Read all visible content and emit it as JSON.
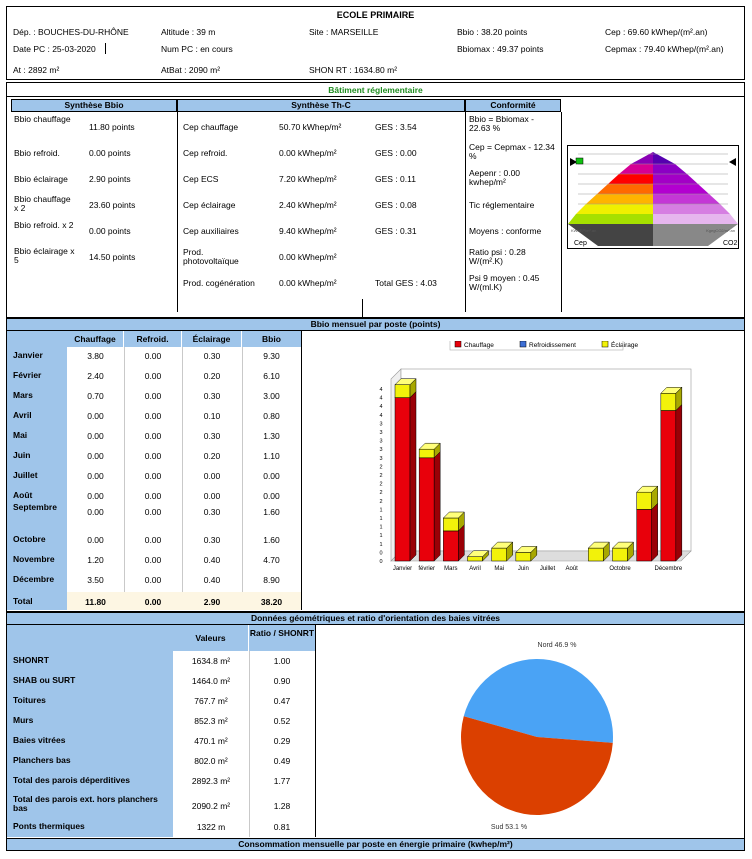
{
  "header": {
    "title": "ECOLE PRIMAIRE",
    "dep": "Dép. :  BOUCHES-DU-RHÔNE",
    "date_pc": "Date PC : 25-03-2020",
    "at": "At : 2892 m²",
    "altitude": "Altitude : 39 m",
    "num_pc": "Num PC  : en cours",
    "atbat": "AtBat : 2090 m²",
    "site": "Site : MARSEILLE",
    "shon": "SHON RT : 1634.80 m²",
    "bbio": "Bbio : 38.20 points",
    "bbiomax": "Bbiomax : 49.37 points",
    "cep": "Cep : 69.60 kWhep/(m².an)",
    "cepmax": "Cepmax : 79.40 kWhep/(m².an)"
  },
  "batiment": {
    "title": "Bâtiment réglementaire",
    "synth_bbio_title": "Synthèse Bbio",
    "synth_thc_title": "Synthèse Th-C",
    "conformite_title": "Conformité",
    "bbio_rows": [
      {
        "label": "Bbio chauffage",
        "value": "11.80 points"
      },
      {
        "label": "Bbio refroid.",
        "value": "0.00 points"
      },
      {
        "label": "Bbio éclairage",
        "value": "2.90 points"
      },
      {
        "label": "Bbio chauffage x 2",
        "value": "23.60 points"
      },
      {
        "label": "Bbio refroid. x 2",
        "value": "0.00 points"
      },
      {
        "label": "Bbio éclairage x 5",
        "value": "14.50 points"
      }
    ],
    "thc_rows": [
      {
        "label": "Cep chauffage",
        "value": "50.70 kWhep/m²",
        "ges": "GES : 3.54"
      },
      {
        "label": "Cep refroid.",
        "value": "0.00 kWhep/m²",
        "ges": "GES : 0.00"
      },
      {
        "label": "Cep ECS",
        "value": "7.20 kWhep/m²",
        "ges": "GES : 0.11"
      },
      {
        "label": "Cep éclairage",
        "value": "2.40 kWhep/m²",
        "ges": "GES : 0.08"
      },
      {
        "label": "Cep auxiliaires",
        "value": "9.40 kWhep/m²",
        "ges": "GES : 0.31"
      },
      {
        "label": "Prod. photovoltaïque",
        "value": "0.00 kWhep/m²",
        "ges": ""
      },
      {
        "label": "Prod. cogénération",
        "value": "0.00 kWhep/m²",
        "ges": "Total GES : 4.03"
      }
    ],
    "conformite_rows": [
      "Bbio = Bbiomax - 22.63 %",
      "Cep = Cepmax - 12.34 %",
      "Aepenr : 0.00 kwhep/m²",
      "Tic réglementaire",
      "Moyens : conforme",
      "Ratio psi : 0.28 W/(m².K)",
      "Psi 9 moyen : 0.45 W/(ml.K)"
    ],
    "pyramid": {
      "left_label": "Cep",
      "right_label": "CO2",
      "left_small": "KWhEP/m².an",
      "right_small": "KgegCO2/m².an"
    }
  },
  "bbio_mensuel": {
    "title": "Bbio mensuel par poste (points)",
    "headers": [
      "Chauffage",
      "Refroid.",
      "Éclairage",
      "Bbio"
    ],
    "rows": [
      {
        "month": "Janvier",
        "vals": [
          "3.80",
          "0.00",
          "0.30",
          "9.30"
        ]
      },
      {
        "month": "Février",
        "vals": [
          "2.40",
          "0.00",
          "0.20",
          "6.10"
        ]
      },
      {
        "month": "Mars",
        "vals": [
          "0.70",
          "0.00",
          "0.30",
          "3.00"
        ]
      },
      {
        "month": "Avril",
        "vals": [
          "0.00",
          "0.00",
          "0.10",
          "0.80"
        ]
      },
      {
        "month": "Mai",
        "vals": [
          "0.00",
          "0.00",
          "0.30",
          "1.30"
        ]
      },
      {
        "month": "Juin",
        "vals": [
          "0.00",
          "0.00",
          "0.20",
          "1.10"
        ]
      },
      {
        "month": "Juillet",
        "vals": [
          "0.00",
          "0.00",
          "0.00",
          "0.00"
        ]
      },
      {
        "month": "Août",
        "vals": [
          "0.00",
          "0.00",
          "0.00",
          "0.00"
        ]
      },
      {
        "month": "Septembre",
        "vals": [
          "0.00",
          "0.00",
          "0.30",
          "1.60"
        ]
      },
      {
        "month": "Octobre",
        "vals": [
          "0.00",
          "0.00",
          "0.30",
          "1.60"
        ]
      },
      {
        "month": "Novembre",
        "vals": [
          "1.20",
          "0.00",
          "0.40",
          "4.70"
        ]
      },
      {
        "month": "Décembre",
        "vals": [
          "3.50",
          "0.00",
          "0.40",
          "8.90"
        ]
      }
    ],
    "total": {
      "month": "Total",
      "vals": [
        "11.80",
        "0.00",
        "2.90",
        "38.20"
      ]
    }
  },
  "chart_data": [
    {
      "type": "bar",
      "categories": [
        "Janvier",
        "Février",
        "Mars",
        "Avril",
        "Mai",
        "Juin",
        "Juillet",
        "Août",
        "Septembre",
        "Octobre",
        "Novembre",
        "Décembre"
      ],
      "x_labels": [
        "Janvier",
        "février",
        "Mars",
        "Avril",
        "Mai",
        "Juin",
        "Juillet",
        "Août",
        "",
        "Octobre",
        "",
        "Décembre"
      ],
      "series": [
        {
          "name": "Chauffage",
          "values": [
            3.8,
            2.4,
            0.7,
            0,
            0,
            0,
            0,
            0,
            0,
            0,
            1.2,
            3.5
          ],
          "color": "#e8000b"
        },
        {
          "name": "Refroidissement",
          "values": [
            0,
            0,
            0,
            0,
            0,
            0,
            0,
            0,
            0,
            0,
            0,
            0
          ],
          "color": "#3d6fd6"
        },
        {
          "name": "Éclairage",
          "values": [
            0.3,
            0.2,
            0.3,
            0.1,
            0.3,
            0.2,
            0,
            0,
            0.3,
            0.3,
            0.4,
            0.4
          ],
          "color": "#f2f20a"
        }
      ],
      "ylim": [
        0,
        4
      ],
      "y_ticks": [
        "0",
        "0",
        "1",
        "1",
        "1",
        "1",
        "1",
        "2",
        "2",
        "2",
        "2",
        "2",
        "3",
        "3",
        "3",
        "3",
        "3",
        "4",
        "4",
        "4",
        "4"
      ],
      "stacked": true,
      "legend": "top"
    },
    {
      "type": "pie",
      "labels": [
        "Nord 46.9 %",
        "Sud 53.1 %"
      ],
      "values": [
        46.9,
        53.1
      ],
      "colors": [
        "#4aa3f5",
        "#db4000"
      ]
    }
  ],
  "geometrie": {
    "title": "Données géométriques et ratio d'orientation des baies vitrées",
    "col_valeurs": "Valeurs",
    "col_ratio": "Ratio / SHONRT",
    "rows": [
      {
        "label": "SHONRT",
        "value": "1634.8 m²",
        "ratio": "1.00"
      },
      {
        "label": "SHAB ou SURT",
        "value": "1464.0 m²",
        "ratio": "0.90"
      },
      {
        "label": "Toitures",
        "value": "767.7 m²",
        "ratio": "0.47"
      },
      {
        "label": "Murs",
        "value": "852.3 m²",
        "ratio": "0.52"
      },
      {
        "label": "Baies vitrées",
        "value": "470.1 m²",
        "ratio": "0.29"
      },
      {
        "label": "Planchers bas",
        "value": "802.0 m²",
        "ratio": "0.49"
      },
      {
        "label": "Total des parois déperditives",
        "value": "2892.3 m²",
        "ratio": "1.77"
      },
      {
        "label": "Total des parois ext. hors planchers bas",
        "value": "2090.2 m²",
        "ratio": "1.28"
      },
      {
        "label": "Ponts thermiques",
        "value": "1322 m",
        "ratio": "0.81"
      }
    ]
  },
  "footer_title": "Consommation mensuelle par poste en énergie primaire (kwhep/m²)",
  "colors": {
    "band": "#9fc5ea",
    "light_row": "#fdf6e3"
  }
}
